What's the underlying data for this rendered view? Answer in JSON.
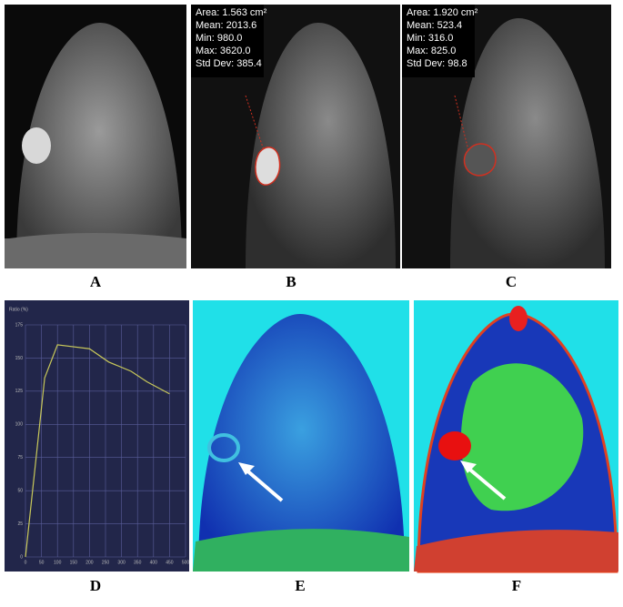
{
  "panels": {
    "labels": [
      "A",
      "B",
      "C",
      "D",
      "E",
      "F"
    ]
  },
  "annotations": {
    "b": [
      "Area: 1.563 cm²",
      "Mean: 2013.6",
      "Min: 980.0",
      "Max: 3620.0",
      "Std Dev: 385.4"
    ],
    "c": [
      "Area: 1.920 cm²",
      "Mean: 523.4",
      "Min: 316.0",
      "Max: 825.0",
      "Std Dev: 98.8"
    ]
  },
  "chart_data": {
    "type": "line",
    "y_label": "Ratio (%)",
    "x": [
      0,
      60,
      100,
      200,
      260,
      330,
      380,
      450
    ],
    "series": [
      {
        "color": "#c8c85a",
        "values": [
          0,
          135,
          160,
          157,
          147,
          140,
          132,
          123
        ]
      }
    ],
    "xlim": [
      0,
      500
    ],
    "ylim": [
      0,
      175
    ],
    "xticks": [
      0,
      50,
      100,
      150,
      200,
      250,
      300,
      350,
      400,
      450,
      500
    ],
    "yticks": [
      0,
      25,
      50,
      75,
      100,
      125,
      150,
      175
    ],
    "grid": true
  }
}
